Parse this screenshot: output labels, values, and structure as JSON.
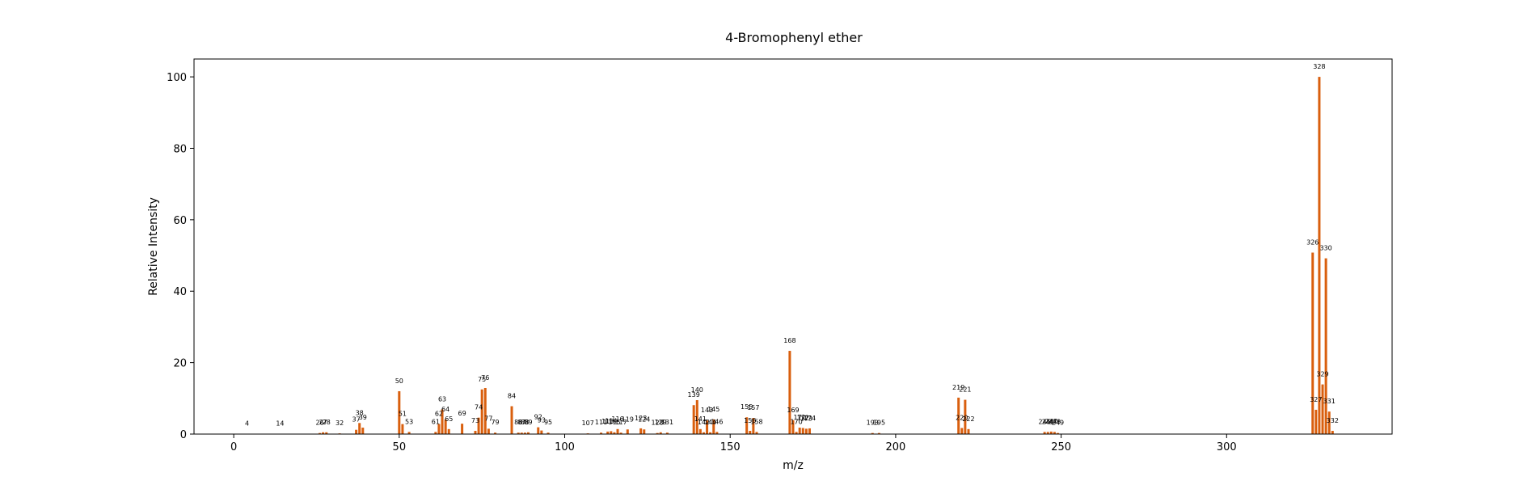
{
  "chart_data": {
    "type": "bar",
    "title": "4-Bromophenyl ether",
    "xlabel": "m/z",
    "ylabel": "Relative Intensity",
    "xlim": [
      -12,
      350
    ],
    "ylim": [
      0,
      105
    ],
    "xticks": [
      0,
      50,
      100,
      150,
      200,
      250,
      300
    ],
    "yticks": [
      0,
      20,
      40,
      60,
      80,
      100
    ],
    "bar_color": "#d95f0e",
    "grid": false,
    "peaks": [
      {
        "mz": 4,
        "intensity": 0.1
      },
      {
        "mz": 14,
        "intensity": 0.1
      },
      {
        "mz": 26,
        "intensity": 0.3
      },
      {
        "mz": 27,
        "intensity": 0.5
      },
      {
        "mz": 28,
        "intensity": 0.5
      },
      {
        "mz": 32,
        "intensity": 0.2
      },
      {
        "mz": 37,
        "intensity": 1.2
      },
      {
        "mz": 38,
        "intensity": 3.1
      },
      {
        "mz": 39,
        "intensity": 1.8
      },
      {
        "mz": 50,
        "intensity": 12.0
      },
      {
        "mz": 51,
        "intensity": 2.8
      },
      {
        "mz": 53,
        "intensity": 0.6
      },
      {
        "mz": 61,
        "intensity": 0.6
      },
      {
        "mz": 62,
        "intensity": 2.8
      },
      {
        "mz": 63,
        "intensity": 6.9
      },
      {
        "mz": 64,
        "intensity": 4.1
      },
      {
        "mz": 65,
        "intensity": 1.4
      },
      {
        "mz": 69,
        "intensity": 2.9
      },
      {
        "mz": 73,
        "intensity": 0.9
      },
      {
        "mz": 74,
        "intensity": 4.6
      },
      {
        "mz": 75,
        "intensity": 12.5
      },
      {
        "mz": 76,
        "intensity": 12.9
      },
      {
        "mz": 77,
        "intensity": 1.5
      },
      {
        "mz": 79,
        "intensity": 0.4
      },
      {
        "mz": 84,
        "intensity": 7.8
      },
      {
        "mz": 86,
        "intensity": 0.4
      },
      {
        "mz": 87,
        "intensity": 0.4
      },
      {
        "mz": 88,
        "intensity": 0.4
      },
      {
        "mz": 89,
        "intensity": 0.5
      },
      {
        "mz": 92,
        "intensity": 1.9
      },
      {
        "mz": 93,
        "intensity": 1.0
      },
      {
        "mz": 95,
        "intensity": 0.4
      },
      {
        "mz": 107,
        "intensity": 0.2
      },
      {
        "mz": 111,
        "intensity": 0.4
      },
      {
        "mz": 113,
        "intensity": 0.7
      },
      {
        "mz": 114,
        "intensity": 0.8
      },
      {
        "mz": 115,
        "intensity": 0.5
      },
      {
        "mz": 116,
        "intensity": 1.4
      },
      {
        "mz": 117,
        "intensity": 0.4
      },
      {
        "mz": 119,
        "intensity": 1.3
      },
      {
        "mz": 123,
        "intensity": 1.6
      },
      {
        "mz": 124,
        "intensity": 1.3
      },
      {
        "mz": 128,
        "intensity": 0.3
      },
      {
        "mz": 129,
        "intensity": 0.5
      },
      {
        "mz": 131,
        "intensity": 0.4
      },
      {
        "mz": 139,
        "intensity": 8.1
      },
      {
        "mz": 140,
        "intensity": 9.5
      },
      {
        "mz": 141,
        "intensity": 1.4
      },
      {
        "mz": 142,
        "intensity": 0.5
      },
      {
        "mz": 143,
        "intensity": 3.8
      },
      {
        "mz": 144,
        "intensity": 0.5
      },
      {
        "mz": 145,
        "intensity": 4.1
      },
      {
        "mz": 146,
        "intensity": 0.6
      },
      {
        "mz": 155,
        "intensity": 4.7
      },
      {
        "mz": 156,
        "intensity": 0.9
      },
      {
        "mz": 157,
        "intensity": 4.5
      },
      {
        "mz": 158,
        "intensity": 0.6
      },
      {
        "mz": 168,
        "intensity": 23.3
      },
      {
        "mz": 169,
        "intensity": 3.9
      },
      {
        "mz": 170,
        "intensity": 0.6
      },
      {
        "mz": 171,
        "intensity": 1.8
      },
      {
        "mz": 172,
        "intensity": 1.7
      },
      {
        "mz": 173,
        "intensity": 1.5
      },
      {
        "mz": 174,
        "intensity": 1.6
      },
      {
        "mz": 193,
        "intensity": 0.3
      },
      {
        "mz": 195,
        "intensity": 0.3
      },
      {
        "mz": 219,
        "intensity": 10.2
      },
      {
        "mz": 220,
        "intensity": 1.7
      },
      {
        "mz": 221,
        "intensity": 9.6
      },
      {
        "mz": 222,
        "intensity": 1.4
      },
      {
        "mz": 245,
        "intensity": 0.6
      },
      {
        "mz": 246,
        "intensity": 0.6
      },
      {
        "mz": 247,
        "intensity": 0.7
      },
      {
        "mz": 248,
        "intensity": 0.6
      },
      {
        "mz": 249,
        "intensity": 0.3
      },
      {
        "mz": 326,
        "intensity": 50.8
      },
      {
        "mz": 327,
        "intensity": 6.8
      },
      {
        "mz": 328,
        "intensity": 100.0
      },
      {
        "mz": 329,
        "intensity": 13.9
      },
      {
        "mz": 330,
        "intensity": 49.2
      },
      {
        "mz": 331,
        "intensity": 6.3
      },
      {
        "mz": 332,
        "intensity": 0.9
      }
    ]
  }
}
